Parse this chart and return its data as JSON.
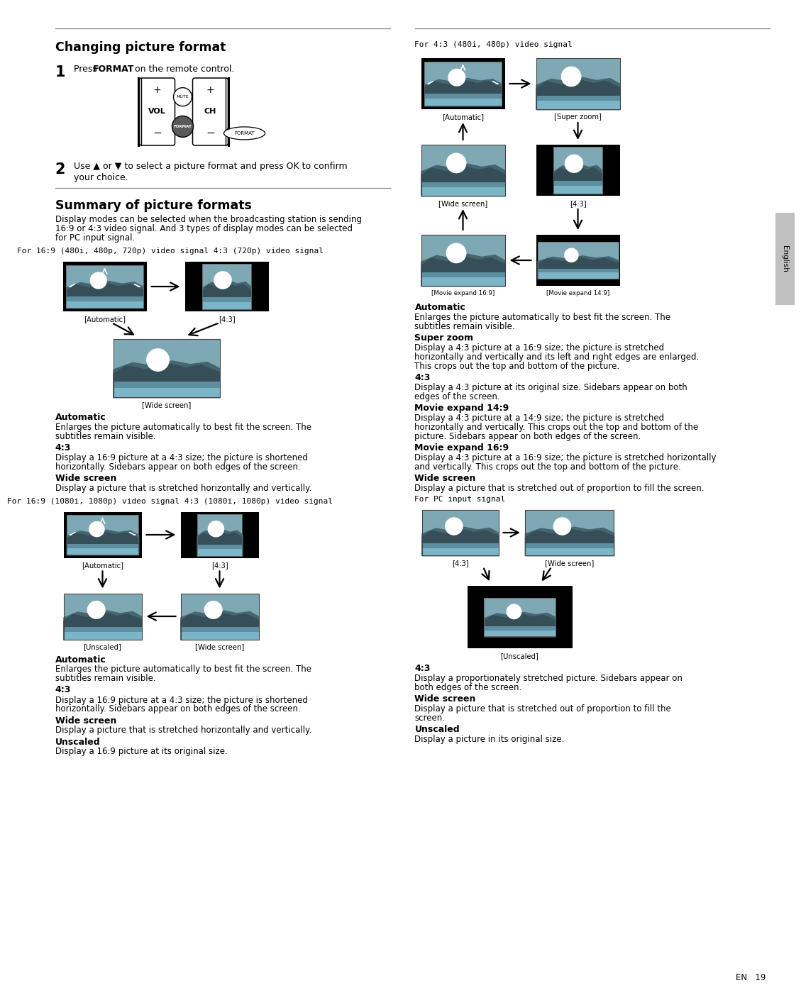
{
  "page_bg": "#ffffff",
  "sky_color": "#7fa8b5",
  "mountain_dark": "#364e57",
  "mountain_mid": "#45666f",
  "water_mid": "#5e8fa0",
  "water_light": "#7ab5c8",
  "black": "#000000",
  "white": "#ffffff",
  "gray_tab": "#c0c0c0",
  "line_color": "#888888",
  "title1": "Changing picture format",
  "step1_plain": "Press ",
  "step1_bold": "FORMAT",
  "step1_rest": " on the remote control.",
  "step2_text": "Use ▲ or ▼ to select a picture format and press OK to confirm",
  "step2_text2": "your choice.",
  "sec2_title": "Summary of picture formats",
  "sec2_body1": "Display modes can be selected when the broadcasting station is sending",
  "sec2_body2": "16:9 or 4:3 video signal. And 3 types of display modes can be selected",
  "sec2_body3": "for PC input signal.",
  "lbl_169_480": "For 16:9 (480i, 480p, 720p) video signal 4:3 (720p) video signal",
  "lbl_169_1080": "For 16:9 (1080i, 1080p) video signal 4:3 (1080i, 1080p) video signal",
  "lbl_43_480": "For 4:3 (480i, 480p) video signal",
  "lbl_pc": "For PC input signal",
  "auto_head": "Automatic",
  "auto_body1": "Enlarges the picture automatically to best fit the screen. The",
  "auto_body2": "subtitles remain visible.",
  "43_head": "4:3",
  "43_body1_169": "Display a 16:9 picture at a 4:3 size; the picture is shortened",
  "43_body2_169": "horizontally. Sidebars appear on both edges of the screen.",
  "43_body1_43": "Display a 4:3 picture at its original size. Sidebars appear on both",
  "43_body2_43": "edges of the screen.",
  "43_body1_pc": "Display a proportionately stretched picture. Sidebars appear on",
  "43_body2_pc": "both edges of the screen.",
  "wide_head": "Wide screen",
  "wide_body_169": "Display a picture that is stretched horizontally and vertically.",
  "wide_body_43": "Display a picture that is stretched out of proportion to fill the screen.",
  "wide_body_pc1": "Display a picture that is stretched out of proportion to fill the",
  "wide_body_pc2": "screen.",
  "unscaled_head": "Unscaled",
  "unscaled_body_1080": "Display a 16:9 picture at its original size.",
  "unscaled_body_pc": "Display a picture in its original size.",
  "superzoom_head": "Super zoom",
  "superzoom_body1": "Display a 4:3 picture at a 16:9 size; the picture is stretched",
  "superzoom_body2": "horizontally and vertically and its left and right edges are enlarged.",
  "superzoom_body3": "This crops out the top and bottom of the picture.",
  "mov14_head": "Movie expand 14:9",
  "mov14_body1": "Display a 4:3 picture at a 14:9 size; the picture is stretched",
  "mov14_body2": "horizontally and vertically. This crops out the top and bottom of the",
  "mov14_body3": "picture. Sidebars appear on both edges of the screen.",
  "mov16_head": "Movie expand 16:9",
  "mov16_body1": "Display a 4:3 picture at a 16:9 size; the picture is stretched horizontally",
  "mov16_body2": "and vertically. This crops out the top and bottom of the picture.",
  "en19": "EN   19"
}
